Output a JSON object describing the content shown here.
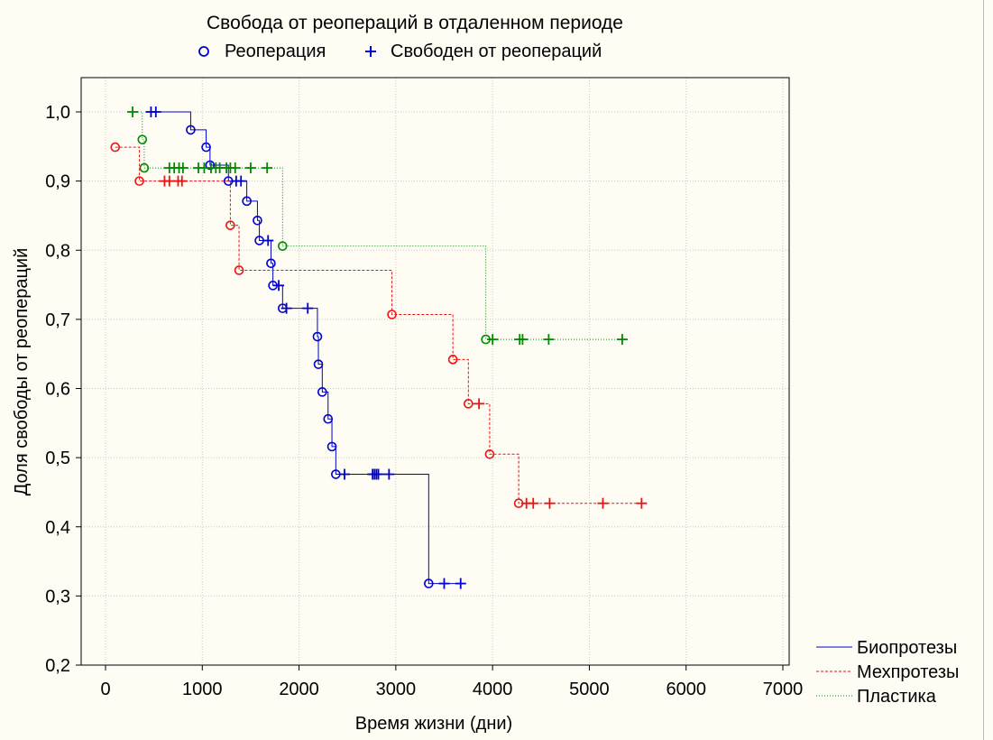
{
  "chart_data": {
    "type": "line",
    "subtype": "kaplan-meier step curves",
    "title": "Свобода от реопераций в отдаленном периоде",
    "marker_legend": [
      {
        "marker": "circle",
        "label": "Реоперация"
      },
      {
        "marker": "plus",
        "label": "Свободен от реопераций"
      }
    ],
    "xlabel": "Время жизни (дни)",
    "ylabel": "Доля свободы от реопераций",
    "xlim": [
      -200,
      7000
    ],
    "ylim": [
      0.2,
      1.05
    ],
    "xticks": [
      0,
      1000,
      2000,
      3000,
      4000,
      5000,
      6000,
      7000
    ],
    "yticks": [
      0.2,
      0.3,
      0.4,
      0.5,
      0.6,
      0.7,
      0.8,
      0.9,
      1.0
    ],
    "xtick_labels": [
      "0",
      "1000",
      "2000",
      "3000",
      "4000",
      "5000",
      "6000",
      "7000"
    ],
    "ytick_labels": [
      "0,2",
      "0,3",
      "0,4",
      "0,5",
      "0,6",
      "0,7",
      "0,8",
      "0,9",
      "1,0"
    ],
    "grid": true,
    "legend_position": "bottom-right",
    "series": [
      {
        "name": "Биопротезы",
        "color": "#0000cc",
        "line_style": "solid",
        "start_x": 450,
        "end_x": 3670,
        "steps": [
          {
            "x": 880,
            "y": 0.974
          },
          {
            "x": 1040,
            "y": 0.949
          },
          {
            "x": 1080,
            "y": 0.923
          },
          {
            "x": 1270,
            "y": 0.9
          },
          {
            "x": 1460,
            "y": 0.871
          },
          {
            "x": 1570,
            "y": 0.843
          },
          {
            "x": 1590,
            "y": 0.814
          },
          {
            "x": 1710,
            "y": 0.781
          },
          {
            "x": 1730,
            "y": 0.749
          },
          {
            "x": 1830,
            "y": 0.716
          },
          {
            "x": 2190,
            "y": 0.675
          },
          {
            "x": 2200,
            "y": 0.635
          },
          {
            "x": 2240,
            "y": 0.595
          },
          {
            "x": 2300,
            "y": 0.556
          },
          {
            "x": 2340,
            "y": 0.516
          },
          {
            "x": 2380,
            "y": 0.476
          },
          {
            "x": 3340,
            "y": 0.318
          }
        ],
        "events": [
          {
            "x": 880,
            "y": 0.974
          },
          {
            "x": 1040,
            "y": 0.949
          },
          {
            "x": 1080,
            "y": 0.923
          },
          {
            "x": 1270,
            "y": 0.9
          },
          {
            "x": 1460,
            "y": 0.871
          },
          {
            "x": 1570,
            "y": 0.843
          },
          {
            "x": 1590,
            "y": 0.814
          },
          {
            "x": 1710,
            "y": 0.781
          },
          {
            "x": 1730,
            "y": 0.749
          },
          {
            "x": 1830,
            "y": 0.716
          },
          {
            "x": 2190,
            "y": 0.675
          },
          {
            "x": 2200,
            "y": 0.635
          },
          {
            "x": 2240,
            "y": 0.595
          },
          {
            "x": 2300,
            "y": 0.556
          },
          {
            "x": 2340,
            "y": 0.516
          },
          {
            "x": 2380,
            "y": 0.476
          },
          {
            "x": 3340,
            "y": 0.318
          }
        ],
        "censored": [
          {
            "x": 470,
            "y": 1.0
          },
          {
            "x": 520,
            "y": 1.0
          },
          {
            "x": 1350,
            "y": 0.9
          },
          {
            "x": 1400,
            "y": 0.9
          },
          {
            "x": 1680,
            "y": 0.814
          },
          {
            "x": 1790,
            "y": 0.749
          },
          {
            "x": 1870,
            "y": 0.716
          },
          {
            "x": 2090,
            "y": 0.716
          },
          {
            "x": 2470,
            "y": 0.476
          },
          {
            "x": 2760,
            "y": 0.476
          },
          {
            "x": 2780,
            "y": 0.476
          },
          {
            "x": 2800,
            "y": 0.476
          },
          {
            "x": 2820,
            "y": 0.476
          },
          {
            "x": 2930,
            "y": 0.476
          },
          {
            "x": 3500,
            "y": 0.318
          },
          {
            "x": 3670,
            "y": 0.318
          }
        ]
      },
      {
        "name": "Мехпротезы",
        "color": "#ee1111",
        "line_style": "dashed",
        "start_x": 100,
        "end_x": 5540,
        "initial_y": 0.949,
        "steps": [
          {
            "x": 350,
            "y": 0.9
          },
          {
            "x": 1290,
            "y": 0.836
          },
          {
            "x": 1380,
            "y": 0.771
          },
          {
            "x": 2960,
            "y": 0.707
          },
          {
            "x": 3590,
            "y": 0.642
          },
          {
            "x": 3750,
            "y": 0.578
          },
          {
            "x": 3970,
            "y": 0.505
          },
          {
            "x": 4270,
            "y": 0.434
          }
        ],
        "events": [
          {
            "x": 100,
            "y": 0.949
          },
          {
            "x": 350,
            "y": 0.9
          },
          {
            "x": 1290,
            "y": 0.836
          },
          {
            "x": 1380,
            "y": 0.771
          },
          {
            "x": 2960,
            "y": 0.707
          },
          {
            "x": 3590,
            "y": 0.642
          },
          {
            "x": 3750,
            "y": 0.578
          },
          {
            "x": 3970,
            "y": 0.505
          },
          {
            "x": 4270,
            "y": 0.434
          }
        ],
        "censored": [
          {
            "x": 610,
            "y": 0.9
          },
          {
            "x": 660,
            "y": 0.9
          },
          {
            "x": 750,
            "y": 0.9
          },
          {
            "x": 790,
            "y": 0.9
          },
          {
            "x": 3860,
            "y": 0.578
          },
          {
            "x": 4350,
            "y": 0.434
          },
          {
            "x": 4420,
            "y": 0.434
          },
          {
            "x": 4590,
            "y": 0.434
          },
          {
            "x": 5140,
            "y": 0.434
          },
          {
            "x": 5540,
            "y": 0.434
          }
        ]
      },
      {
        "name": "Пластика",
        "color": "#008800",
        "line_style": "dotted",
        "start_x": 280,
        "end_x": 5340,
        "steps": [
          {
            "x": 380,
            "y": 0.96
          },
          {
            "x": 400,
            "y": 0.919
          },
          {
            "x": 1830,
            "y": 0.806
          },
          {
            "x": 3930,
            "y": 0.671
          }
        ],
        "events": [
          {
            "x": 380,
            "y": 0.96
          },
          {
            "x": 400,
            "y": 0.919
          },
          {
            "x": 1830,
            "y": 0.806
          },
          {
            "x": 3930,
            "y": 0.671
          }
        ],
        "censored": [
          {
            "x": 280,
            "y": 1.0
          },
          {
            "x": 660,
            "y": 0.919
          },
          {
            "x": 710,
            "y": 0.919
          },
          {
            "x": 760,
            "y": 0.919
          },
          {
            "x": 800,
            "y": 0.919
          },
          {
            "x": 960,
            "y": 0.919
          },
          {
            "x": 1020,
            "y": 0.919
          },
          {
            "x": 1090,
            "y": 0.919
          },
          {
            "x": 1140,
            "y": 0.919
          },
          {
            "x": 1180,
            "y": 0.919
          },
          {
            "x": 1250,
            "y": 0.919
          },
          {
            "x": 1290,
            "y": 0.919
          },
          {
            "x": 1340,
            "y": 0.919
          },
          {
            "x": 1500,
            "y": 0.919
          },
          {
            "x": 1670,
            "y": 0.919
          },
          {
            "x": 4000,
            "y": 0.671
          },
          {
            "x": 4280,
            "y": 0.671
          },
          {
            "x": 4310,
            "y": 0.671
          },
          {
            "x": 4580,
            "y": 0.671
          },
          {
            "x": 5340,
            "y": 0.671
          }
        ]
      }
    ]
  }
}
